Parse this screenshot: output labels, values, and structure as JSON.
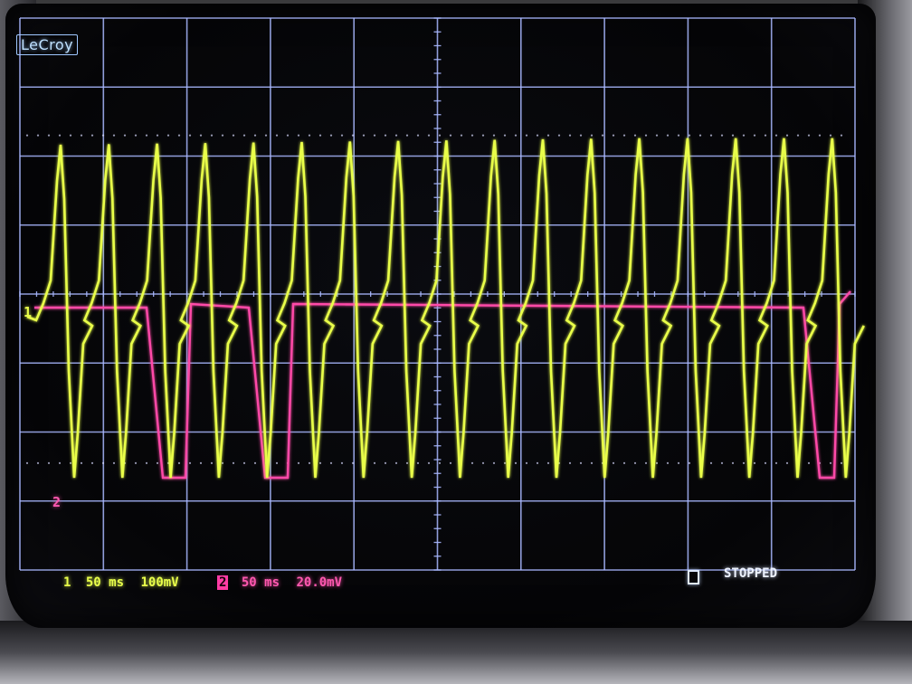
{
  "scope": {
    "brand": "LeCroy",
    "channel1": {
      "marker": "1",
      "readout_number": "1",
      "timebase": "50 ms",
      "volts_per_div": "100mV",
      "trace_color": "#e9ff4a"
    },
    "channel2": {
      "marker": "2",
      "readout_number": "2",
      "timebase": "50 ms",
      "volts_per_div": "20.0mV",
      "trace_color": "#ff4aa8"
    },
    "status": "STOPPED",
    "grid_color": "#a9b8ff",
    "grid": {
      "divisions_x": 10,
      "divisions_y": 8
    }
  }
}
